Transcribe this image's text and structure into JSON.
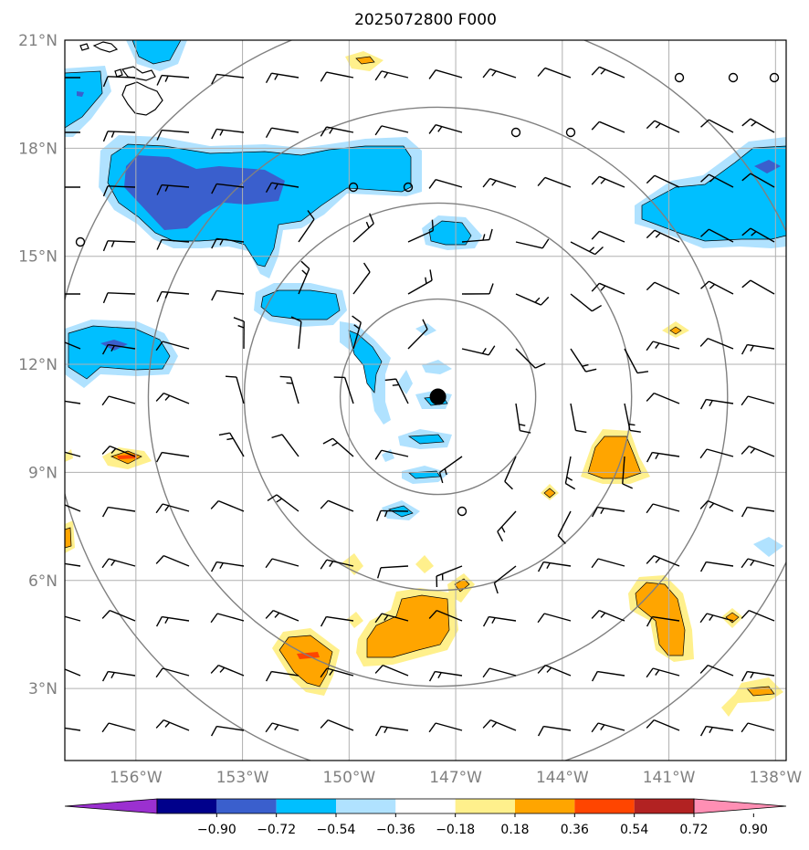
{
  "title": "2025072800 F000",
  "map": {
    "lon_range": [
      -158,
      -137.7
    ],
    "lat_range": [
      1,
      21
    ],
    "lat_ticks": [
      {
        "value": 21,
        "label": "21°N"
      },
      {
        "value": 18,
        "label": "18°N"
      },
      {
        "value": 15,
        "label": "15°N"
      },
      {
        "value": 12,
        "label": "12°N"
      },
      {
        "value": 9,
        "label": "9°N"
      },
      {
        "value": 6,
        "label": "6°N"
      },
      {
        "value": 3,
        "label": "3°N"
      }
    ],
    "lon_ticks": [
      {
        "value": -156,
        "label": "156°W"
      },
      {
        "value": -153,
        "label": "153°W"
      },
      {
        "value": -150,
        "label": "150°W"
      },
      {
        "value": -147,
        "label": "147°W"
      },
      {
        "value": -144,
        "label": "144°W"
      },
      {
        "value": -141,
        "label": "141°W"
      },
      {
        "value": -138,
        "label": "138°W"
      }
    ],
    "storm_center": {
      "lon": -147.5,
      "lat": 11.1
    },
    "range_rings_deg": [
      2.75,
      5.45,
      8.15,
      10.85
    ]
  },
  "colorbar": {
    "labels": [
      "−0.90",
      "−0.72",
      "−0.54",
      "−0.36",
      "−0.18",
      "0.18",
      "0.36",
      "0.54",
      "0.72",
      "0.90"
    ],
    "colors": [
      "#9b30d0",
      "#00008b",
      "#3a5fcd",
      "#00bfff",
      "#b0e2ff",
      "#ffffff",
      "#fff08c",
      "#ffa500",
      "#ff4500",
      "#b22222",
      "#ff8fb4"
    ]
  },
  "palette": {
    "neg1": "#b0e2ff",
    "neg2": "#00bfff",
    "neg3": "#3a5fcd",
    "pos1": "#fff08c",
    "pos2": "#ffa500",
    "pos3": "#ff4500"
  }
}
